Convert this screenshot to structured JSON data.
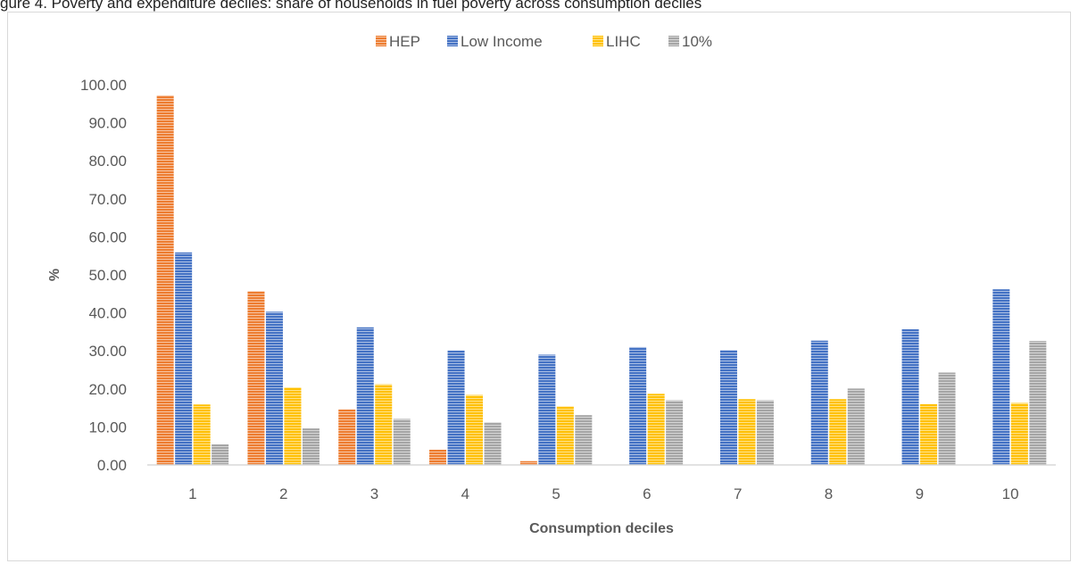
{
  "caption": "gure 4. Poverty and expenditure deciles: share of households in fuel poverty across consumption deciles",
  "chart_data": {
    "type": "bar",
    "title": "",
    "xlabel": "Consumption deciles",
    "ylabel": "%",
    "ylim": [
      0,
      100
    ],
    "ytick_step": 10,
    "ytick_decimals": 2,
    "categories": [
      "1",
      "2",
      "3",
      "4",
      "5",
      "6",
      "7",
      "8",
      "9",
      "10"
    ],
    "legend_position": "top-center",
    "grid": false,
    "series": [
      {
        "name": "HEP",
        "color": "#ED7D31",
        "values": [
          97.2,
          45.7,
          14.6,
          4.0,
          1.0,
          0,
          0,
          0,
          0,
          0
        ]
      },
      {
        "name": "Low Income",
        "color": "#4472C4",
        "values": [
          55.9,
          40.3,
          36.2,
          30.1,
          29.0,
          31.0,
          30.2,
          32.7,
          35.7,
          46.2
        ]
      },
      {
        "name": "LIHC",
        "color": "#FFC000",
        "values": [
          15.9,
          20.4,
          21.2,
          18.4,
          15.4,
          18.7,
          17.3,
          17.3,
          16.0,
          16.3
        ]
      },
      {
        "name": "10%",
        "color": "#A5A5A5",
        "values": [
          5.4,
          9.6,
          12.1,
          11.2,
          13.1,
          17.0,
          17.0,
          20.1,
          24.3,
          32.6
        ]
      }
    ]
  }
}
